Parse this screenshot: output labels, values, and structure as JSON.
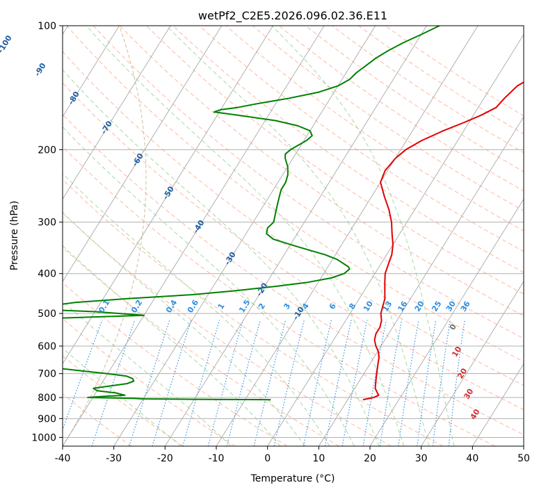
{
  "chart_data": {
    "type": "line",
    "subtype": "skew-T log-P diagram",
    "title": "wetPf2_C2E5.2026.096.02.36.E11",
    "xlabel": "Temperature (°C)",
    "ylabel": "Pressure (hPa)",
    "xlim": [
      -40,
      50
    ],
    "ylim": [
      1050,
      100
    ],
    "y_scale": "log",
    "grid": true,
    "x_ticks": [
      -40,
      -30,
      -20,
      -10,
      0,
      10,
      20,
      30,
      40,
      50
    ],
    "y_ticks": [
      100,
      200,
      300,
      400,
      500,
      600,
      700,
      800,
      900,
      1000
    ],
    "series": [
      {
        "color": "#e00000",
        "pressure": [
          810,
          800,
          790,
          780,
          760,
          740,
          720,
          700,
          680,
          660,
          640,
          620,
          600,
          580,
          560,
          540,
          520,
          500,
          480,
          460,
          440,
          420,
          400,
          380,
          360,
          340,
          320,
          300,
          280,
          260,
          240,
          225,
          210,
          200,
          190,
          180,
          172,
          165,
          158,
          150,
          145,
          140,
          133,
          128,
          124,
          120,
          115,
          110,
          105,
          100
        ],
        "temperature": [
          13.0,
          14.8,
          15.5,
          15.0,
          14.0,
          13.5,
          13.0,
          12.5,
          12.0,
          11.5,
          11.0,
          10.2,
          9.0,
          8.0,
          7.5,
          7.5,
          7.0,
          6.0,
          5.5,
          5.0,
          4.0,
          3.0,
          2.0,
          1.5,
          1.0,
          0.0,
          -1.5,
          -3.0,
          -5.0,
          -7.5,
          -10.0,
          -10.5,
          -10.0,
          -9.0,
          -7.0,
          -4.0,
          -1.0,
          1.5,
          3.5,
          4.0,
          4.5,
          5.0,
          7.0,
          10.0,
          13.0,
          15.0,
          16.5,
          17.0,
          18.0,
          19.0
        ]
      },
      {
        "color": "#008000",
        "pressure": [
          810,
          808,
          806,
          804,
          800,
          795,
          790,
          780,
          770,
          760,
          750,
          740,
          730,
          720,
          710,
          700,
          690,
          680,
          665,
          520,
          515,
          510,
          505,
          500,
          495,
          490,
          480,
          470,
          460,
          450,
          440,
          430,
          420,
          410,
          400,
          390,
          385,
          380,
          370,
          360,
          350,
          340,
          330,
          320,
          310,
          300,
          290,
          280,
          270,
          260,
          250,
          240,
          230,
          220,
          210,
          205,
          200,
          195,
          190,
          185,
          180,
          175,
          170,
          165,
          162,
          160,
          158,
          155,
          150,
          145,
          140,
          135,
          130,
          125,
          120,
          115,
          110,
          105,
          100
        ],
        "temperature": [
          -5.0,
          -20.0,
          -30.0,
          -32.0,
          -41.0,
          -38.0,
          -34.0,
          -36.0,
          -40.0,
          -41.0,
          -38.0,
          -35.0,
          -34.0,
          -34.5,
          -36.0,
          -40.0,
          -45.0,
          -50.0,
          -60.0,
          -60.0,
          -60.0,
          -50.0,
          -40.0,
          -45.0,
          -50.0,
          -59.0,
          -60.0,
          -55.0,
          -45.0,
          -33.0,
          -25.0,
          -18.0,
          -12.0,
          -8.0,
          -6.0,
          -5.5,
          -6.0,
          -7.0,
          -9.0,
          -12.0,
          -16.0,
          -20.0,
          -24.0,
          -26.0,
          -26.5,
          -26.0,
          -26.5,
          -27.0,
          -27.5,
          -28.0,
          -28.5,
          -28.5,
          -29.0,
          -30.0,
          -31.5,
          -32.0,
          -31.5,
          -30.5,
          -29.5,
          -29.0,
          -30.0,
          -33.0,
          -38.0,
          -46.0,
          -51.0,
          -50.0,
          -47.0,
          -44.0,
          -38.0,
          -33.0,
          -30.0,
          -28.5,
          -28.0,
          -27.0,
          -26.0,
          -24.5,
          -22.5,
          -20.0,
          -17.5
        ]
      }
    ],
    "background_lines": {
      "isotherm_skew_degrees_per_log_decade": 50,
      "isotherms_C": [
        -100,
        -90,
        -80,
        -70,
        -60,
        -50,
        -40,
        -30,
        -20,
        -10,
        0,
        10,
        20,
        30,
        40,
        50,
        60,
        70,
        80,
        90
      ],
      "dry_adiabats_C": [
        -30,
        -20,
        -10,
        0,
        10,
        20,
        30,
        40,
        50,
        60,
        70,
        80,
        90,
        100,
        110,
        120,
        130,
        140,
        150,
        160,
        170,
        180,
        190,
        200
      ],
      "moist_adiabats_C": [
        -20,
        -10,
        0,
        5,
        10,
        15,
        20,
        25,
        30,
        35
      ],
      "mixing_ratios_gkg": [
        0.1,
        0.2,
        0.4,
        0.6,
        1,
        1.5,
        2,
        3,
        4,
        6,
        8,
        10,
        13,
        16,
        20,
        25,
        30,
        36
      ]
    },
    "annotations": {
      "isotherm_labels": [
        "-100",
        "-90",
        "-80",
        "-70",
        "-60",
        "-50",
        "-40",
        "-30",
        "-20",
        "-10"
      ],
      "mixing_ratio_labels": [
        "0.1",
        "0.2",
        "0.4",
        "0.6",
        "1",
        "1.5",
        "2",
        "3",
        "4",
        "6",
        "8",
        "10",
        "13",
        "16",
        "20",
        "25",
        "30",
        "36"
      ],
      "wet_bulb_labels": [
        "0",
        "10",
        "20",
        "30",
        "40"
      ]
    },
    "colors": {
      "isotherm_line": "#a8a8a8",
      "isotherm_label": "#1f5fa0",
      "dry_adiabat": "#ff9f80",
      "moist_adiabat": "#8fcf8f",
      "mixing_ratio": "#2f8fe0",
      "wet_bulb_label_zero": "#707070",
      "wet_bulb_label": "#d03030",
      "curve_line": "#d8c8a8"
    }
  }
}
